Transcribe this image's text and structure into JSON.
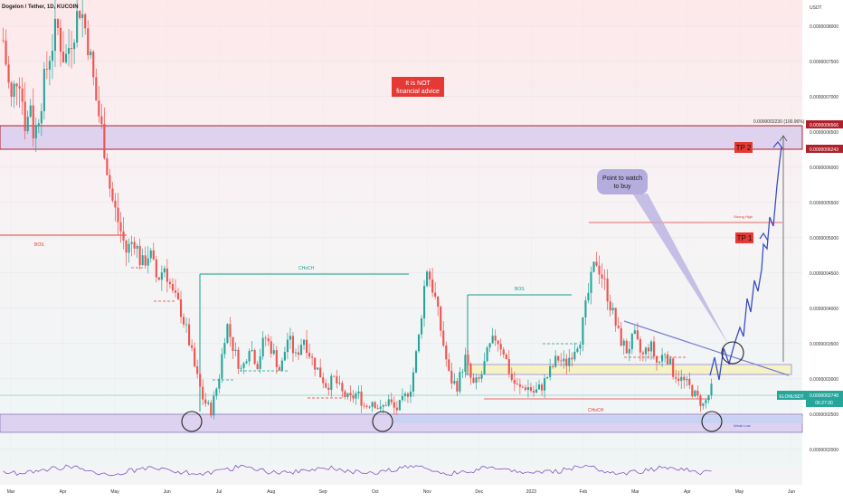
{
  "header": {
    "symbol_title": "Dogelon / Tether, 1D, KUCOIN",
    "currency": "USDT"
  },
  "chart_data": {
    "type": "candlestick",
    "title": "Dogelon / Tether, 1D, KUCOIN",
    "ylabel": "USDT",
    "ylim": [
      1.78e-07,
      8.37e-07
    ],
    "y_ticks": [
      "0.0000008000",
      "0.0000007500",
      "0.0000007000",
      "0.0000006500",
      "0.0000006000",
      "0.0000005500",
      "0.0000005000",
      "0.0000004500",
      "0.0000004000",
      "0.0000003500",
      "0.0000003000",
      "0.0000002500",
      "0.0000002000"
    ],
    "x_ticks": [
      "Mar",
      "Apr",
      "May",
      "Jun",
      "Jul",
      "Aug",
      "Sep",
      "Oct",
      "Nov",
      "Dec",
      "2023",
      "Feb",
      "Mar",
      "Apr",
      "May",
      "Jun"
    ],
    "price_path": [
      {
        "t": 0,
        "p": 7.8e-07
      },
      {
        "t": 1,
        "p": 6.9e-07
      },
      {
        "t": 2,
        "p": 7.4e-07
      },
      {
        "t": 3,
        "p": 6.5e-07
      },
      {
        "t": 3.5,
        "p": 7e-07
      },
      {
        "t": 4,
        "p": 6.4e-07
      },
      {
        "t": 5,
        "p": 7e-07
      },
      {
        "t": 6,
        "p": 7.6e-07
      },
      {
        "t": 7,
        "p": 8e-07
      },
      {
        "t": 8,
        "p": 7.5e-07
      },
      {
        "t": 9,
        "p": 7.9e-07
      },
      {
        "t": 10,
        "p": 8.3e-07
      },
      {
        "t": 11,
        "p": 7.8e-07
      },
      {
        "t": 12,
        "p": 7e-07
      },
      {
        "t": 13,
        "p": 6.4e-07
      },
      {
        "t": 14,
        "p": 5.6e-07
      },
      {
        "t": 15,
        "p": 5.2e-07
      },
      {
        "t": 16,
        "p": 4.8e-07
      },
      {
        "t": 17,
        "p": 5e-07
      },
      {
        "t": 18,
        "p": 4.6e-07
      },
      {
        "t": 19,
        "p": 4.8e-07
      },
      {
        "t": 20,
        "p": 4.4e-07
      },
      {
        "t": 21,
        "p": 4.6e-07
      },
      {
        "t": 22,
        "p": 4.2e-07
      },
      {
        "t": 23,
        "p": 4e-07
      },
      {
        "t": 24,
        "p": 3.6e-07
      },
      {
        "t": 25,
        "p": 3.1e-07
      },
      {
        "t": 26,
        "p": 2.7e-07
      },
      {
        "t": 27,
        "p": 2.55e-07
      },
      {
        "t": 28,
        "p": 3e-07
      },
      {
        "t": 29,
        "p": 3.8e-07
      },
      {
        "t": 30,
        "p": 3.4e-07
      },
      {
        "t": 31,
        "p": 3.1e-07
      },
      {
        "t": 32,
        "p": 3.5e-07
      },
      {
        "t": 33,
        "p": 3.2e-07
      },
      {
        "t": 34,
        "p": 3.6e-07
      },
      {
        "t": 35,
        "p": 3.4e-07
      },
      {
        "t": 36,
        "p": 3.1e-07
      },
      {
        "t": 37,
        "p": 3.6e-07
      },
      {
        "t": 38,
        "p": 3.3e-07
      },
      {
        "t": 39,
        "p": 3.6e-07
      },
      {
        "t": 40,
        "p": 3.3e-07
      },
      {
        "t": 41,
        "p": 3.1e-07
      },
      {
        "t": 42,
        "p": 2.9e-07
      },
      {
        "t": 43,
        "p": 3e-07
      },
      {
        "t": 44,
        "p": 2.8e-07
      },
      {
        "t": 45,
        "p": 2.7e-07
      },
      {
        "t": 46,
        "p": 2.8e-07
      },
      {
        "t": 47,
        "p": 2.6e-07
      },
      {
        "t": 48,
        "p": 2.7e-07
      },
      {
        "t": 49,
        "p": 2.55e-07
      },
      {
        "t": 50,
        "p": 2.7e-07
      },
      {
        "t": 51,
        "p": 2.55e-07
      },
      {
        "t": 52,
        "p": 2.7e-07
      },
      {
        "t": 53,
        "p": 2.9e-07
      },
      {
        "t": 54,
        "p": 3.6e-07
      },
      {
        "t": 55,
        "p": 4.6e-07
      },
      {
        "t": 56,
        "p": 4.2e-07
      },
      {
        "t": 57,
        "p": 3.6e-07
      },
      {
        "t": 58,
        "p": 3e-07
      },
      {
        "t": 59,
        "p": 2.9e-07
      },
      {
        "t": 60,
        "p": 3.3e-07
      },
      {
        "t": 61,
        "p": 2.9e-07
      },
      {
        "t": 62,
        "p": 3e-07
      },
      {
        "t": 63,
        "p": 3.4e-07
      },
      {
        "t": 64,
        "p": 3.6e-07
      },
      {
        "t": 65,
        "p": 3.4e-07
      },
      {
        "t": 66,
        "p": 3e-07
      },
      {
        "t": 67,
        "p": 2.85e-07
      },
      {
        "t": 68,
        "p": 2.9e-07
      },
      {
        "t": 69,
        "p": 2.8e-07
      },
      {
        "t": 70,
        "p": 2.9e-07
      },
      {
        "t": 71,
        "p": 3.1e-07
      },
      {
        "t": 72,
        "p": 3.3e-07
      },
      {
        "t": 73,
        "p": 3.2e-07
      },
      {
        "t": 74,
        "p": 3.4e-07
      },
      {
        "t": 75,
        "p": 3.6e-07
      },
      {
        "t": 76,
        "p": 4.2e-07
      },
      {
        "t": 77,
        "p": 4.7e-07
      },
      {
        "t": 78,
        "p": 4.4e-07
      },
      {
        "t": 79,
        "p": 4e-07
      },
      {
        "t": 80,
        "p": 3.6e-07
      },
      {
        "t": 81,
        "p": 3.4e-07
      },
      {
        "t": 82,
        "p": 3.6e-07
      },
      {
        "t": 83,
        "p": 3.3e-07
      },
      {
        "t": 84,
        "p": 3.5e-07
      },
      {
        "t": 85,
        "p": 3.2e-07
      },
      {
        "t": 86,
        "p": 3.4e-07
      },
      {
        "t": 87,
        "p": 3.1e-07
      },
      {
        "t": 88,
        "p": 3e-07
      },
      {
        "t": 89,
        "p": 2.9e-07
      },
      {
        "t": 90,
        "p": 2.75e-07
      },
      {
        "t": 91,
        "p": 2.62e-07
      },
      {
        "t": 92,
        "p": 2.85e-07
      }
    ],
    "zones": [
      {
        "label": "",
        "from": 6.566e-07,
        "to": 6.243e-07
      },
      {
        "label": "",
        "from": 2.53e-07,
        "to": 2.28e-07
      },
      {
        "label": "",
        "from": 3.2e-07,
        "to": 3.07e-07
      }
    ],
    "annotations": {
      "disclaimer": "It is NOT\nfinancial advice",
      "buy_point": "Point to watch\nto buy",
      "tp1": "TP 1",
      "tp2": "TP 2",
      "measure": "0.0000002230 (100.96%)",
      "bos_left": "BOS",
      "bos_right": "BOS",
      "choch_top": "CHoCH",
      "choch_bottom": "CHoCH",
      "strong_high": "Strong High",
      "weak_low": "Weak Low"
    },
    "price_labels": {
      "top_zone_high": "0.0000006566",
      "top_zone_low": "0.0000006243",
      "current_symbol": "ELONUSDT",
      "current_price": "0.0000002748",
      "countdown": "06:27:30"
    }
  }
}
